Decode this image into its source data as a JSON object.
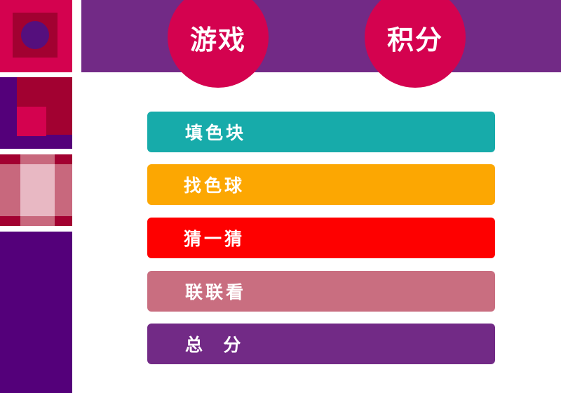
{
  "header": {
    "title_left": "游戏",
    "title_right": "积分"
  },
  "menu": {
    "items": [
      {
        "label": "填色块",
        "color": "#17abaa"
      },
      {
        "label": "找色球",
        "color": "#fca702"
      },
      {
        "label": "猜一猜",
        "color": "#fe0000"
      },
      {
        "label": "联联看",
        "color": "#c96e80"
      },
      {
        "label": "总  分",
        "color": "#722a86"
      }
    ]
  },
  "colors": {
    "header_band": "#722a86",
    "circle": "#d4024f",
    "dark_purple": "#54007a",
    "crimson": "#a20131"
  }
}
